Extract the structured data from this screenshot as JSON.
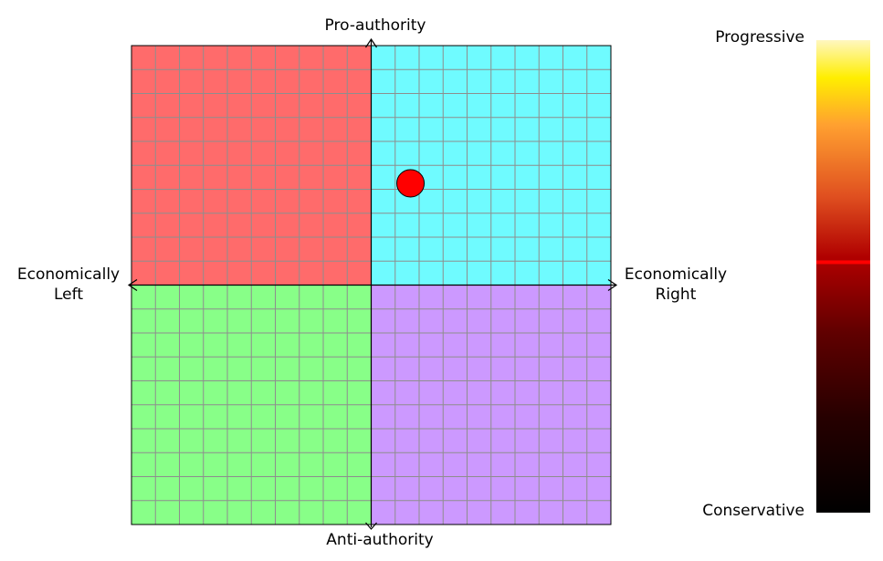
{
  "chart_data": {
    "type": "scatter",
    "axis_labels": {
      "top": "Pro-authority",
      "bottom": "Anti-authority",
      "left": [
        "Economically",
        "Left"
      ],
      "right": [
        "Economically",
        "Right"
      ]
    },
    "xlim": [
      -10,
      10
    ],
    "ylim": [
      -10,
      10
    ],
    "grid": true,
    "quadrants": [
      {
        "id": "authoritarian-left",
        "color": "#ff6b6b"
      },
      {
        "id": "authoritarian-right",
        "color": "#6ffbff"
      },
      {
        "id": "libertarian-left",
        "color": "#88ff88"
      },
      {
        "id": "libertarian-right",
        "color": "#cc99ff"
      }
    ],
    "point": {
      "x": 1.64,
      "y": 4.25,
      "color": "#ff0000"
    },
    "colorbar": {
      "top_label": "Progressive",
      "bottom_label": "Conservative",
      "marker_value": 0.53,
      "marker_color": "#ff0000"
    }
  }
}
